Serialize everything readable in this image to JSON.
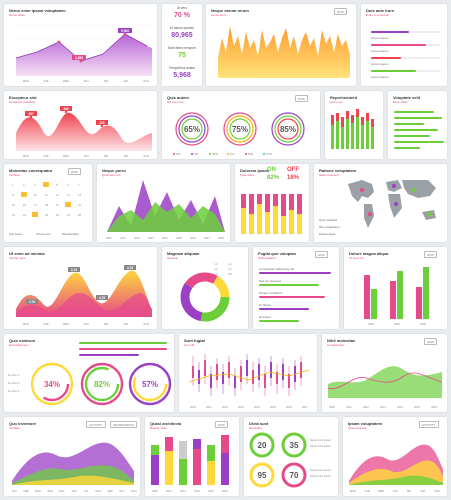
{
  "cards": {
    "c1": {
      "title": "Nemo enim ipsam voluptatem",
      "sub": "Nemo etiam",
      "months": [
        "MON",
        "TUE",
        "WED",
        "THU",
        "FRI",
        "SAT",
        "SUN"
      ],
      "labels": [
        "5,968",
        "2,380"
      ]
    },
    "c2": {
      "stats": [
        {
          "label": "At vero",
          "value": "70 %"
        },
        {
          "label": "Et harum quidem",
          "value": "80,965"
        },
        {
          "label": "Nam libero tempore",
          "value": "75"
        },
        {
          "label": "Temporibus autem",
          "value": "5,968"
        }
      ]
    },
    "c3": {
      "title": "Neque earum rerum",
      "sub": "Nemo enim",
      "select": "2015"
    },
    "c4": {
      "title": "Duis aute irure",
      "sub": "Dolor in reprehen",
      "rows": [
        "Lorem ipsum",
        "Lorem ipsum",
        "Lorem ipsum",
        "Lorem ipsum"
      ]
    },
    "c5": {
      "title": "Excepteur sint",
      "sub": "Occaecat cupidatat",
      "labels": [
        "387",
        "389",
        "236"
      ],
      "months": [
        "MON",
        "TUE",
        "WED",
        "THU",
        "FRI",
        "SAT",
        "SUN"
      ]
    },
    "c6": {
      "title": "Quis autem",
      "sub": "Vel eum iure",
      "select": "2015",
      "rings": [
        "65%",
        "75%",
        "85%"
      ],
      "legend": [
        "UID",
        "SID",
        "ROR",
        "DIV",
        "MIM",
        "COG"
      ]
    },
    "c7": {
      "title": "Reprehenderit",
      "sub": "Qui in ea"
    },
    "c8": {
      "title": "Voluptate velit",
      "sub": "Esse cillum"
    },
    "c9": {
      "title": "Molestiae consequatur",
      "sub": "Vel illum",
      "select": "2015",
      "legend": [
        "Quis autem",
        "Vel eum iure",
        "Reprehenderit"
      ]
    },
    "c10": {
      "title": "Neque porro",
      "sub": "Quisquam est",
      "years": [
        "2010",
        "2011",
        "2012",
        "2013",
        "2014",
        "2015",
        "2016",
        "2017",
        "2018"
      ]
    },
    "c11": {
      "title": "Dolorem ipsum",
      "sub": "Quia dolor",
      "on": "ON",
      "off": "OFF",
      "on_val": "82%",
      "off_val": "18%"
    },
    "c12": {
      "title": "Ratione voluptatem",
      "sub": "Sequi nesciunt",
      "legend": [
        "Quis voluptas",
        "Sint voluptatum",
        "Doloremque"
      ]
    },
    "c13": {
      "title": "Ut enim ad minima",
      "sub": "Veniam quis",
      "labels": [
        "3,78",
        "4,78",
        "2,78",
        "4,78"
      ],
      "months": [
        "MON",
        "TUE",
        "WED",
        "THU",
        "FRI",
        "SAT",
        "SUN"
      ]
    },
    "c14": {
      "title": "Magnam aliquam",
      "sub": "Quaerat",
      "legend": [
        "1,2",
        "1,4",
        "4,6",
        "3,3",
        "5,3",
        "3,8"
      ]
    },
    "c15": {
      "title": "Fugiat quo voluptas",
      "sub": "Nulla pariatur",
      "select": "2015",
      "rows": [
        "Consectetur adipiscing elit",
        "Sed do eiusmod",
        "Tempor incididunt",
        "Ut labore",
        "Et dolore"
      ]
    },
    "c16": {
      "title": "Dolore magna aliqua",
      "sub": "Ut enim ad",
      "select": "2015",
      "years": [
        "2018",
        "2019",
        "2020"
      ]
    },
    "c17": {
      "title": "Quis nostrum",
      "sub": "Exercitationem",
      "rings": [
        "34%",
        "82%",
        "57%"
      ],
      "items": [
        "No Item 1",
        "No Item 2",
        "No Item 3"
      ]
    },
    "c18": {
      "title": "Sunt fugiat",
      "sub": "Aut odit",
      "years": [
        "2010",
        "2011",
        "2012",
        "2013",
        "2014",
        "2015",
        "2016",
        "2017"
      ]
    },
    "c19": {
      "title": "Nihil molestiae",
      "sub": "Consequatur",
      "select": "2015",
      "years": [
        "2010",
        "2011",
        "2012",
        "2013",
        "2014",
        "2015",
        "2016"
      ]
    },
    "c20": {
      "title": "Quo inventore",
      "sub": "Veritatis",
      "tabs": [
        "ACTIVITY",
        "INFORMATION"
      ],
      "months": [
        "JAN",
        "FEB",
        "MAR",
        "APR",
        "MAY",
        "JUN",
        "JUL",
        "AUG",
        "SEP",
        "OCT",
        "NOV"
      ]
    },
    "c21": {
      "title": "Quasi architecto",
      "sub": "Beatae vitae",
      "select": "2015",
      "years": [
        "2010",
        "2011",
        "2012",
        "2013",
        "2014",
        "2015"
      ]
    },
    "c22": {
      "title": "Dicta sunt",
      "sub": "Explicabo",
      "rings": [
        "20",
        "35",
        "95",
        "70"
      ],
      "items": [
        "Nemo enim ipsam",
        "Nemo enim ipsam",
        "Nemo enim ipsam",
        "Nemo enim ipsam"
      ]
    },
    "c23": {
      "title": "Ipsam voluptatem",
      "sub": "Quia voluptas",
      "tabs": [
        "ACTIVITY"
      ],
      "months": [
        "MON",
        "TUE",
        "WED",
        "THU",
        "FRI",
        "SAT",
        "SUN"
      ]
    }
  },
  "colors": {
    "pink": "#e64a8b",
    "purple": "#9b3fc7",
    "orange": "#ff9a2e",
    "green": "#6ccf3a",
    "yellow": "#ffd83a",
    "red": "#f0424f"
  }
}
